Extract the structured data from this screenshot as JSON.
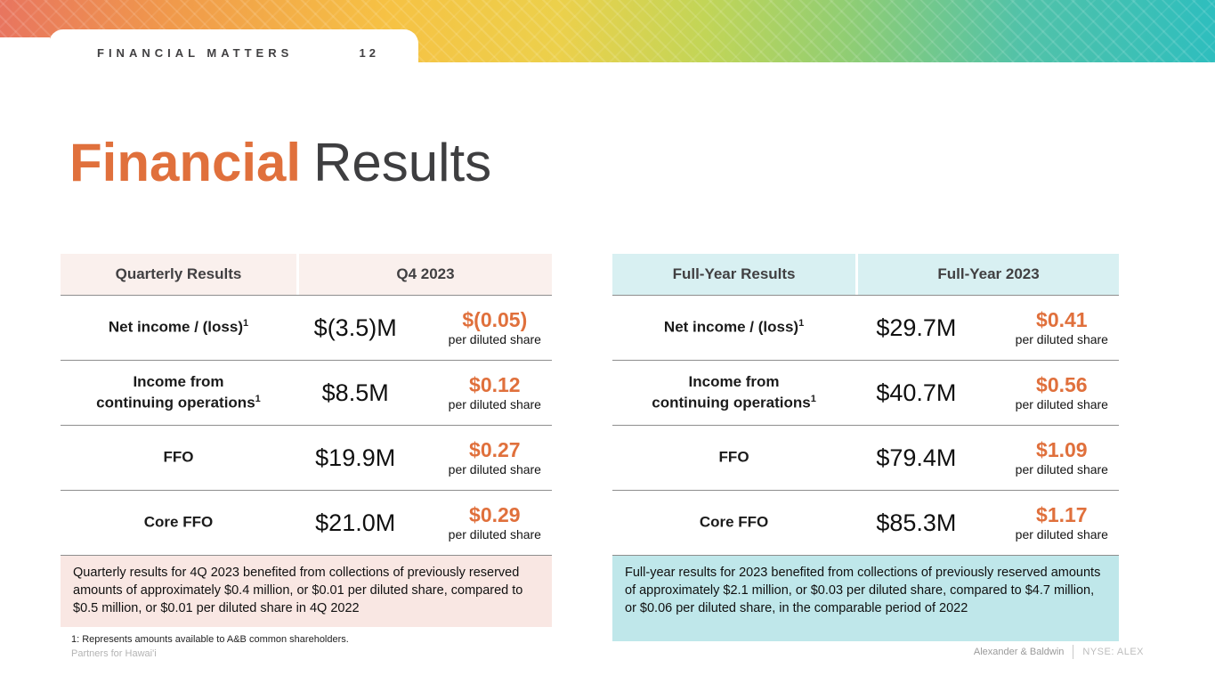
{
  "banner": {
    "tab_label": "FINANCIAL MATTERS",
    "page_number": "12"
  },
  "title": {
    "highlight": "Financial",
    "rest": "Results"
  },
  "labels": {
    "per_diluted_share": "per diluted share"
  },
  "colors": {
    "accent_orange": "#E0703C",
    "quarterly_header_bg": "#FAF0ED",
    "quarterly_note_bg": "#F9E7E3",
    "fullyear_header_bg": "#D8F0F2",
    "fullyear_note_bg": "#BFE7EA"
  },
  "tables": [
    {
      "header": {
        "col1": "Quarterly Results",
        "col2": "Q4 2023"
      },
      "rows": [
        {
          "label": "Net income / (loss)",
          "sup": "1",
          "value": "$(3.5)M",
          "per_share": "$(0.05)"
        },
        {
          "label": "Income from\ncontinuing operations",
          "sup": "1",
          "value": "$8.5M",
          "per_share": "$0.12"
        },
        {
          "label": "FFO",
          "value": "$19.9M",
          "per_share": "$0.27"
        },
        {
          "label": "Core FFO",
          "value": "$21.0M",
          "per_share": "$0.29"
        }
      ],
      "note": "Quarterly results for 4Q 2023 benefited from collections of previously reserved amounts of approximately $0.4 million, or $0.01 per diluted share, compared to $0.5 million, or $0.01 per diluted share in 4Q 2022"
    },
    {
      "header": {
        "col1": "Full-Year Results",
        "col2": "Full-Year 2023"
      },
      "rows": [
        {
          "label": "Net income / (loss)",
          "sup": "1",
          "value": "$29.7M",
          "per_share": "$0.41"
        },
        {
          "label": "Income from\ncontinuing operations",
          "sup": "1",
          "value": "$40.7M",
          "per_share": "$0.56"
        },
        {
          "label": "FFO",
          "value": "$79.4M",
          "per_share": "$1.09"
        },
        {
          "label": "Core FFO",
          "value": "$85.3M",
          "per_share": "$1.17"
        }
      ],
      "note": "Full-year results for 2023 benefited from collections of previously reserved amounts of approximately $2.1 million, or $0.03 per diluted share, compared to $4.7 million, or $0.06 per diluted share, in the comparable period of 2022"
    }
  ],
  "footnote": "1: Represents amounts available to A&B common shareholders.",
  "footer": {
    "left": "Partners for Hawai'i",
    "company": "Alexander & Baldwin",
    "ticker": "NYSE: ALEX"
  }
}
